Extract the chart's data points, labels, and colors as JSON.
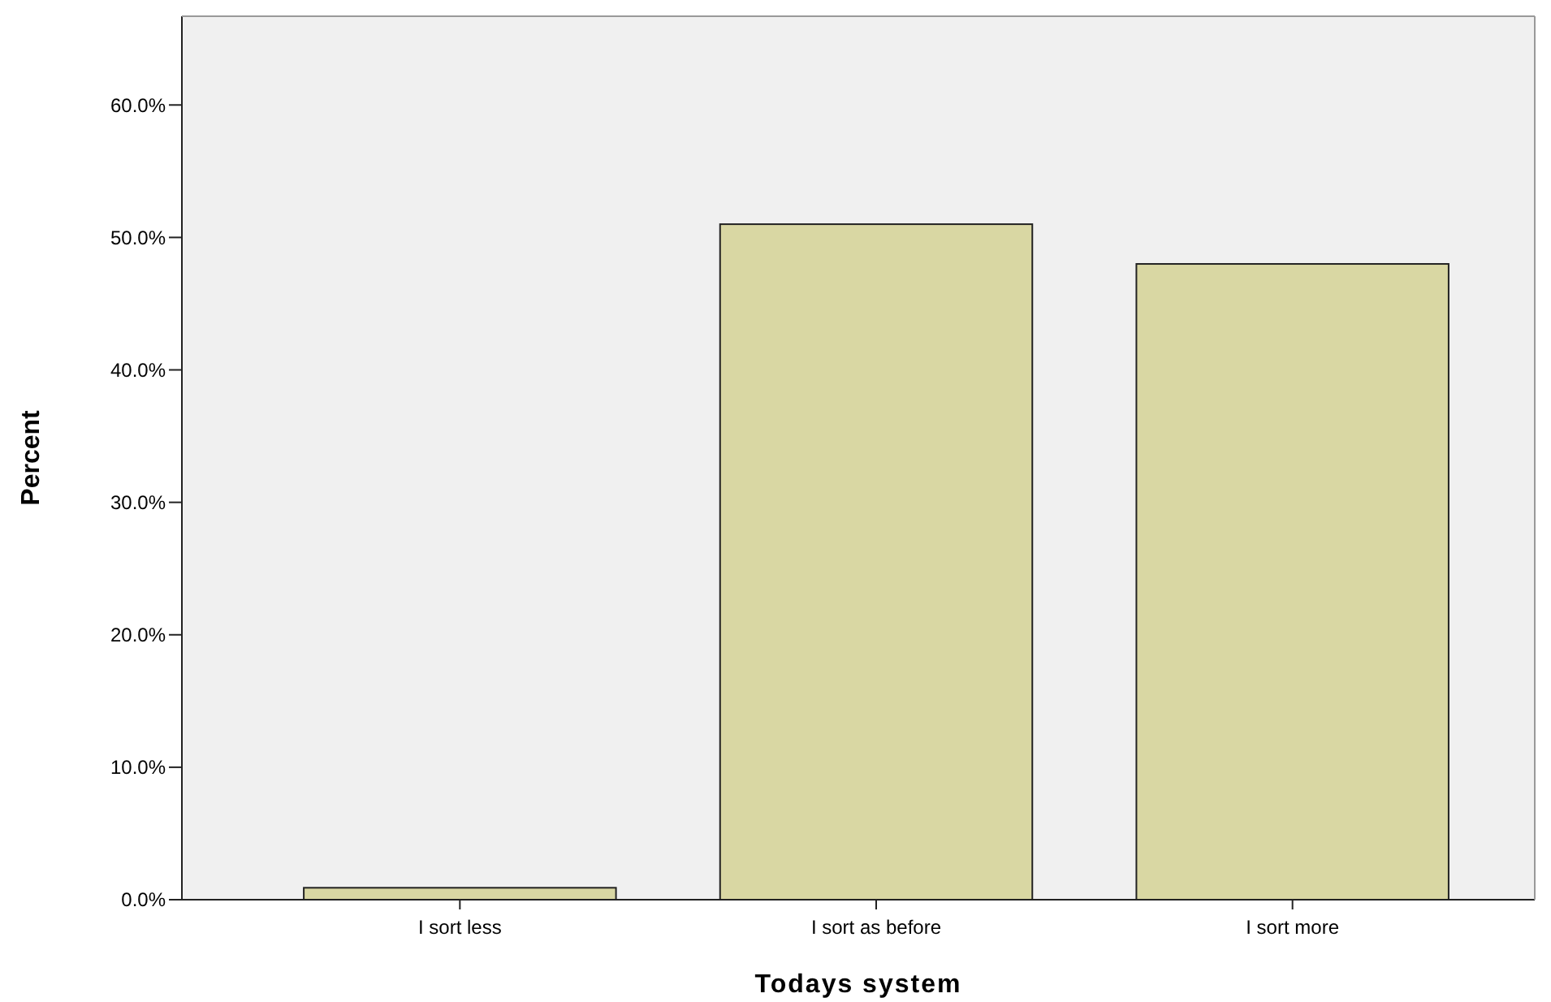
{
  "chart_data": {
    "type": "bar",
    "xlabel": "Todays system",
    "ylabel": "Percent",
    "categories": [
      "I sort less",
      "I sort as before",
      "I sort more"
    ],
    "values": [
      0.9,
      51.0,
      48.0
    ],
    "color": "#d9d7a3",
    "ylim": [
      0,
      66.7
    ],
    "yticks": [
      {
        "value": 0,
        "label": "0.0%"
      },
      {
        "value": 10,
        "label": "10.0%"
      },
      {
        "value": 20,
        "label": "20.0%"
      },
      {
        "value": 30,
        "label": "30.0%"
      },
      {
        "value": 40,
        "label": "40.0%"
      },
      {
        "value": 50,
        "label": "50.0%"
      },
      {
        "value": 60,
        "label": "60.0%"
      }
    ],
    "grid": false
  }
}
